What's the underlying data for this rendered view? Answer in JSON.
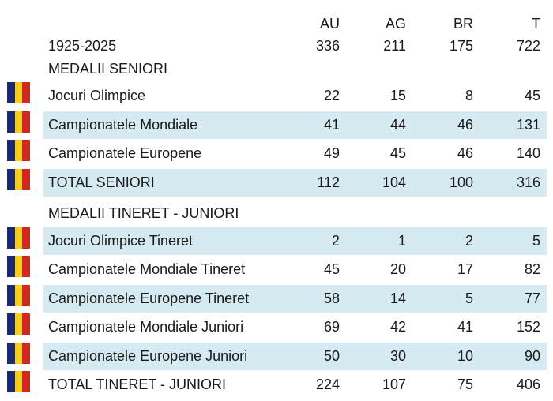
{
  "header": {
    "au": "AU",
    "ag": "AG",
    "br": "BR",
    "t": "T"
  },
  "period": {
    "label": "1925-2025",
    "au": "336",
    "ag": "211",
    "br": "175",
    "t": "722"
  },
  "seniors": {
    "title": "MEDALII SENIORI",
    "rows": [
      {
        "label": "Jocuri Olimpice",
        "au": "22",
        "ag": "15",
        "br": "8",
        "t": "45"
      },
      {
        "label": "Campionatele Mondiale",
        "au": "41",
        "ag": "44",
        "br": "46",
        "t": "131"
      },
      {
        "label": "Campionatele Europene",
        "au": "49",
        "ag": "45",
        "br": "46",
        "t": "140"
      },
      {
        "label": "TOTAL SENIORI",
        "au": "112",
        "ag": "104",
        "br": "100",
        "t": "316"
      }
    ]
  },
  "juniors": {
    "title": "MEDALII TINERET - JUNIORI",
    "rows": [
      {
        "label": "Jocuri Olimpice Tineret",
        "au": "2",
        "ag": "1",
        "br": "2",
        "t": "5"
      },
      {
        "label": "Campionatele Mondiale Tineret",
        "au": "45",
        "ag": "20",
        "br": "17",
        "t": "82"
      },
      {
        "label": "Campionatele Europene Tineret",
        "au": "58",
        "ag": "14",
        "br": "5",
        "t": "77"
      },
      {
        "label": "Campionatele Mondiale Juniori",
        "au": "69",
        "ag": "42",
        "br": "41",
        "t": "152"
      },
      {
        "label": "Campionatele Europene Juniori",
        "au": "50",
        "ag": "30",
        "br": "10",
        "t": "90"
      },
      {
        "label": "TOTAL TINERET - JUNIORI",
        "au": "224",
        "ag": "107",
        "br": "75",
        "t": "406"
      }
    ]
  },
  "colors": {
    "stripe": "#d6eaf1",
    "flag_blue": "#1b2a78",
    "flag_yellow": "#f5cf1a",
    "flag_red": "#cf2a1f"
  },
  "icons": {
    "flag": "romania-flag-icon"
  }
}
